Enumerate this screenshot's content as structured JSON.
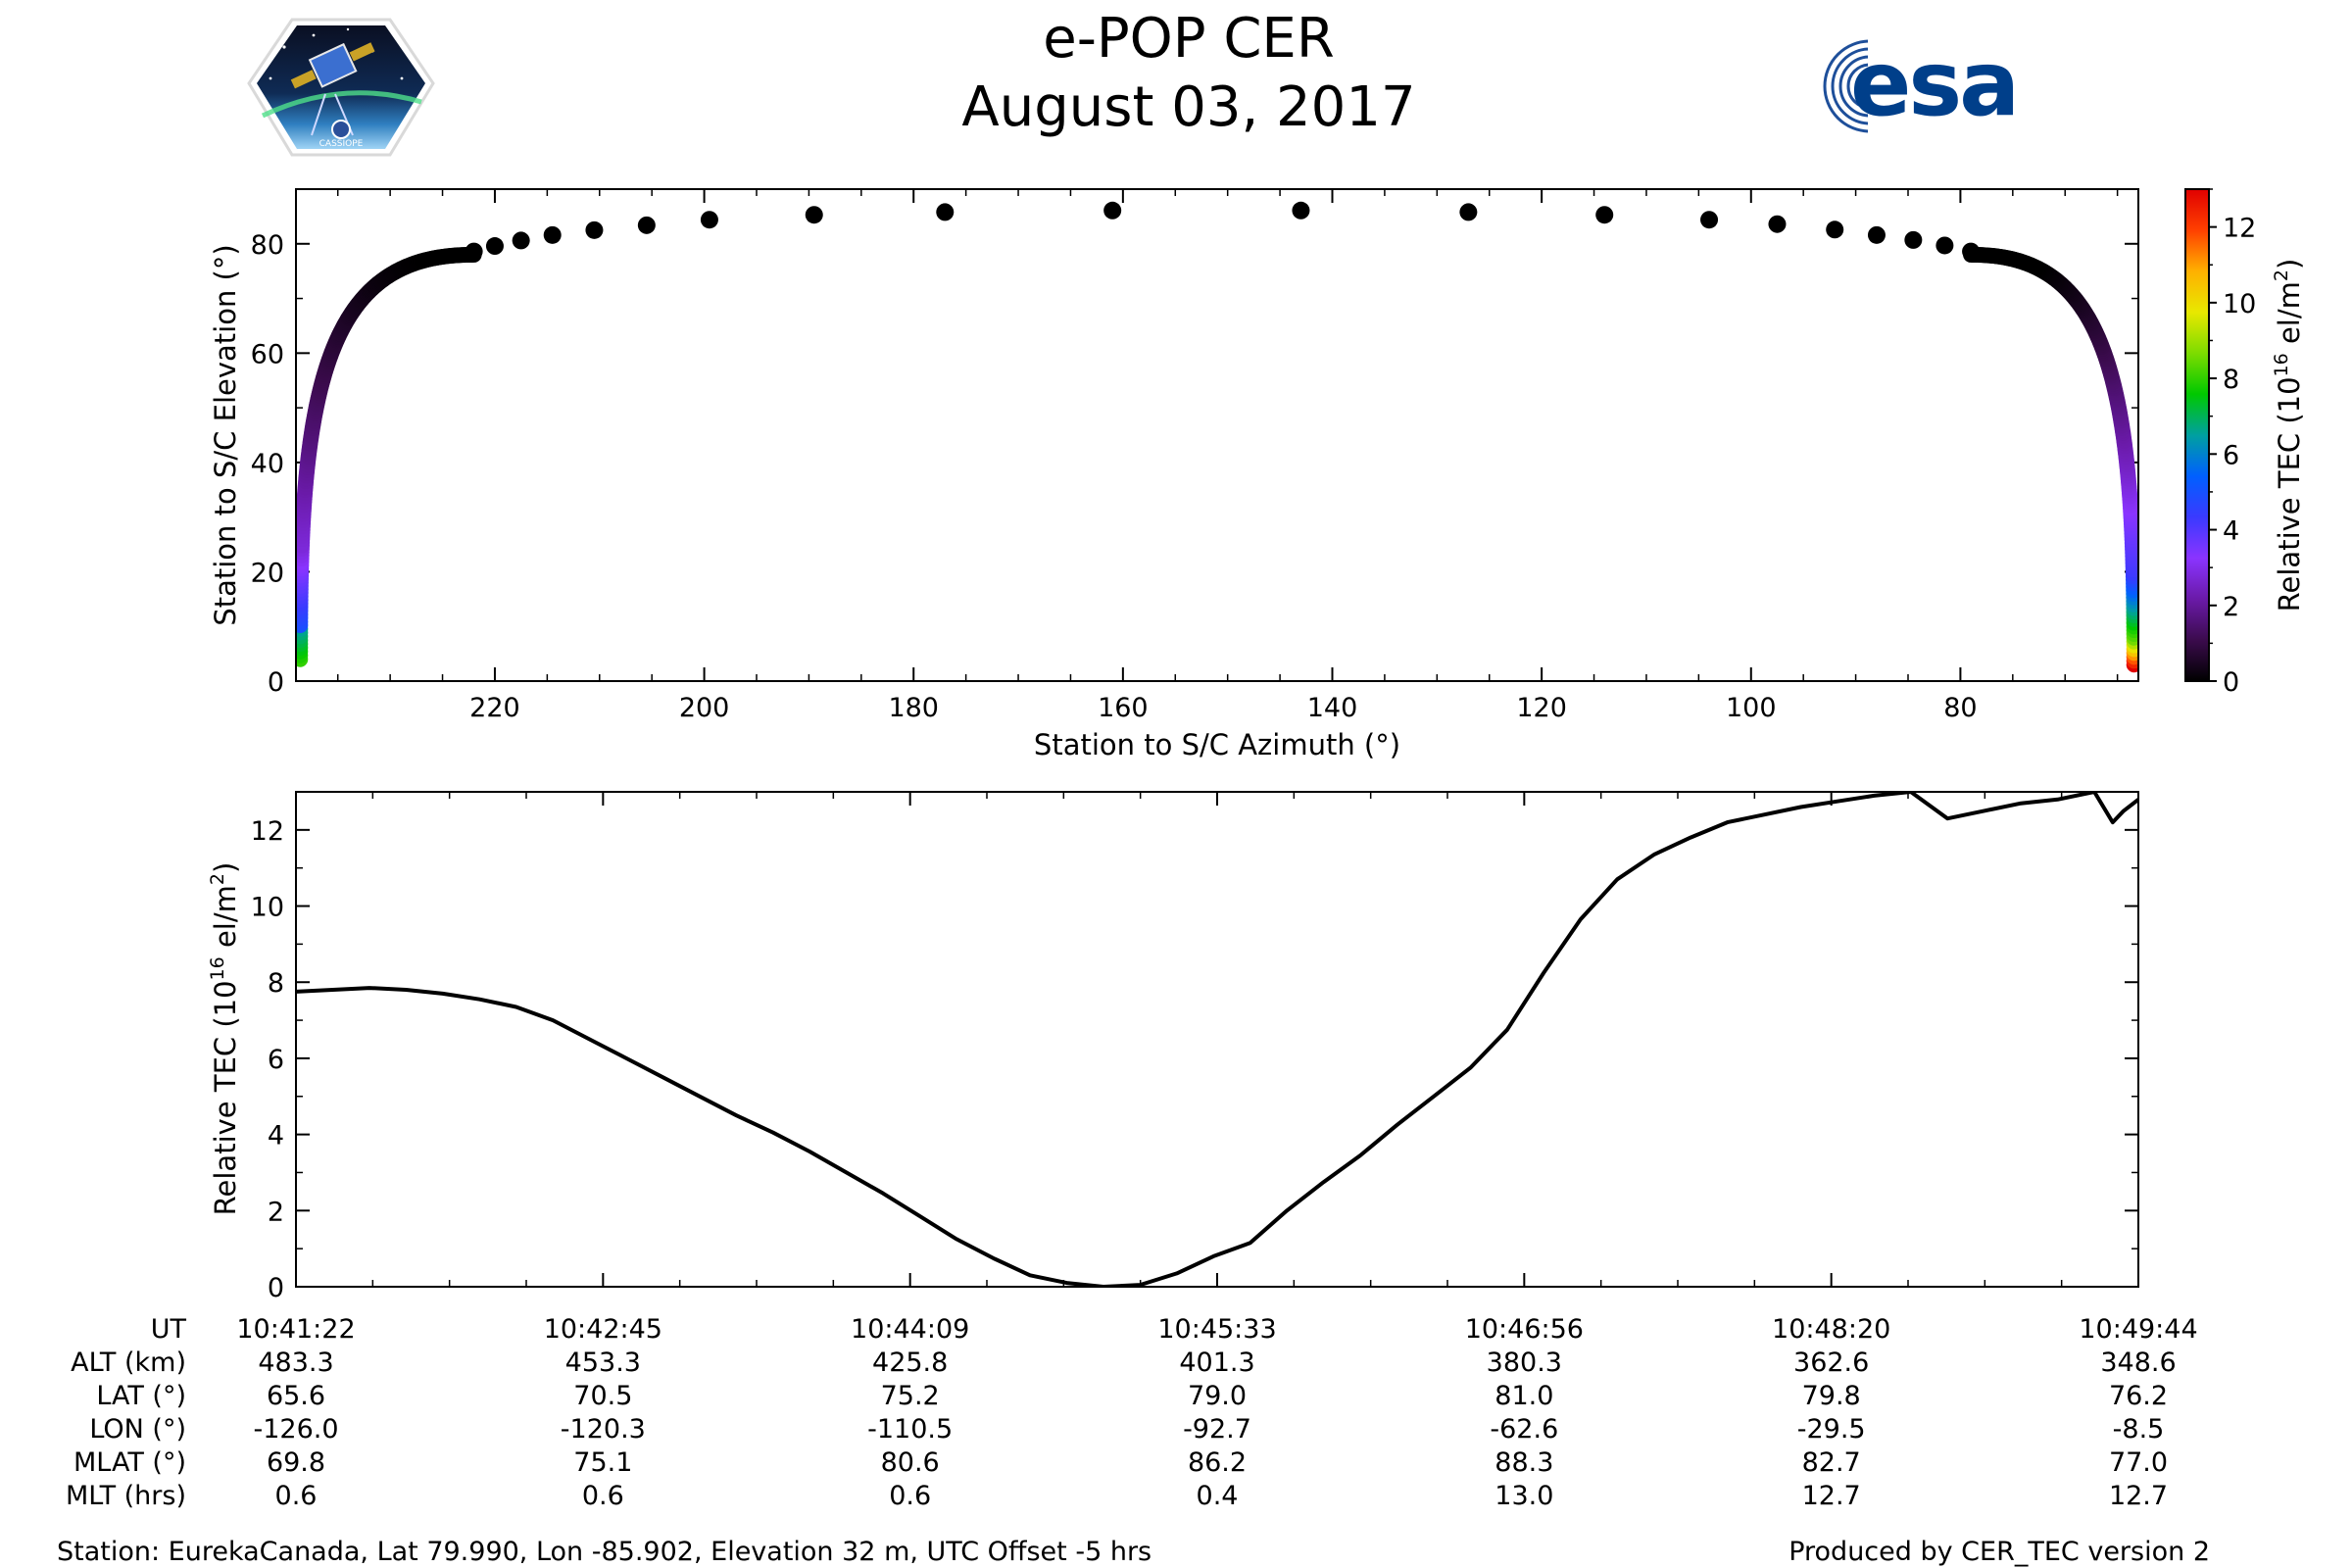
{
  "header": {
    "title": "e-POP CER",
    "date": "August 03, 2017",
    "left_logo_text": "CASSIOPE",
    "right_logo_text": "esa"
  },
  "chart_data": [
    {
      "type": "scatter",
      "name": "sky-track",
      "xlabel": "Station to S/C Azimuth (°)",
      "ylabel": "Station to S/C Elevation (°)",
      "xlim": [
        239,
        63
      ],
      "ylim": [
        0,
        90
      ],
      "xticks": [
        220,
        200,
        180,
        160,
        140,
        120,
        100,
        80
      ],
      "yticks": [
        0,
        20,
        40,
        60,
        80
      ],
      "points": [
        {
          "az": 222,
          "el": 78.6
        },
        {
          "az": 220,
          "el": 79.6
        },
        {
          "az": 217.5,
          "el": 80.6
        },
        {
          "az": 214.5,
          "el": 81.6
        },
        {
          "az": 210.5,
          "el": 82.5
        },
        {
          "az": 205.5,
          "el": 83.4
        },
        {
          "az": 199.5,
          "el": 84.4
        },
        {
          "az": 189.5,
          "el": 85.3
        },
        {
          "az": 177,
          "el": 85.8
        },
        {
          "az": 161,
          "el": 86.1
        },
        {
          "az": 143,
          "el": 86.1
        },
        {
          "az": 127,
          "el": 85.8
        },
        {
          "az": 114,
          "el": 85.3
        },
        {
          "az": 104,
          "el": 84.4
        },
        {
          "az": 97.5,
          "el": 83.6
        },
        {
          "az": 92,
          "el": 82.6
        },
        {
          "az": 88,
          "el": 81.6
        },
        {
          "az": 84.5,
          "el": 80.7
        },
        {
          "az": 81.5,
          "el": 79.7
        },
        {
          "az": 79,
          "el": 78.6
        }
      ],
      "colorbar": {
        "label": "Relative TEC (10",
        "label_sup": "16",
        "label_end": " el/m",
        "label_sup2": "2",
        "label_close": ")",
        "range": [
          0,
          13
        ],
        "ticks": [
          0,
          2,
          4,
          6,
          8,
          10,
          12
        ],
        "colors": [
          "#000000",
          "#3b0b4d",
          "#6a1aa8",
          "#8a34ff",
          "#3a3aff",
          "#0060ff",
          "#00a0a0",
          "#00c800",
          "#7ddc00",
          "#e8e800",
          "#ffb000",
          "#ff4000",
          "#e00000"
        ]
      }
    },
    {
      "type": "line",
      "name": "relative-tec",
      "ylabel": "Relative TEC (10",
      "ylabel_sup": "16",
      "ylabel_end": " el/m",
      "ylabel_sup2": "2",
      "ylabel_close": ")",
      "xlim": [
        0,
        502
      ],
      "ylim": [
        0,
        13
      ],
      "yticks": [
        0,
        2,
        4,
        6,
        8,
        10,
        12
      ],
      "x": [
        0,
        10,
        20,
        30,
        40,
        50,
        60,
        70,
        80,
        90,
        100,
        110,
        120,
        130,
        140,
        150,
        160,
        170,
        180,
        190,
        200,
        210,
        220,
        230,
        240,
        250,
        260,
        270,
        280,
        290,
        300,
        310,
        320,
        330,
        340,
        350,
        360,
        370,
        380,
        390,
        400,
        410,
        420,
        430,
        440,
        450,
        460,
        470,
        480,
        490,
        495,
        498,
        502
      ],
      "values": [
        7.75,
        7.8,
        7.85,
        7.8,
        7.7,
        7.55,
        7.35,
        7.0,
        6.5,
        6.0,
        5.5,
        5.0,
        4.5,
        4.05,
        3.55,
        3.0,
        2.45,
        1.85,
        1.25,
        0.75,
        0.3,
        0.1,
        0.0,
        0.05,
        0.35,
        0.8,
        1.15,
        2.0,
        2.75,
        3.45,
        4.25,
        5.0,
        5.75,
        6.75,
        8.25,
        9.65,
        10.7,
        11.35,
        11.8,
        12.2,
        12.4,
        12.6,
        12.75,
        12.9,
        13.0,
        12.3,
        12.5,
        12.7,
        12.8,
        13.0,
        12.2,
        12.5,
        12.8
      ]
    }
  ],
  "time_table": {
    "rows": [
      {
        "label": "UT",
        "values": [
          "10:41:22",
          "10:42:45",
          "10:44:09",
          "10:45:33",
          "10:46:56",
          "10:48:20",
          "10:49:44"
        ]
      },
      {
        "label": "ALT (km)",
        "values": [
          "483.3",
          "453.3",
          "425.8",
          "401.3",
          "380.3",
          "362.6",
          "348.6"
        ]
      },
      {
        "label": "LAT (°)",
        "values": [
          "65.6",
          "70.5",
          "75.2",
          "79.0",
          "81.0",
          "79.8",
          "76.2"
        ]
      },
      {
        "label": "LON (°)",
        "values": [
          "-126.0",
          "-120.3",
          "-110.5",
          "-92.7",
          "-62.6",
          "-29.5",
          "-8.5"
        ]
      },
      {
        "label": "MLAT (°)",
        "values": [
          "69.8",
          "75.1",
          "80.6",
          "86.2",
          "88.3",
          "82.7",
          "77.0"
        ]
      },
      {
        "label": "MLT (hrs)",
        "values": [
          "0.6",
          "0.6",
          "0.6",
          "0.4",
          "13.0",
          "12.7",
          "12.7"
        ]
      }
    ]
  },
  "footer": {
    "station": "Station: EurekaCanada, Lat 79.990, Lon -85.902, Elevation 32 m, UTC Offset -5 hrs",
    "produced": "Produced by CER_TEC version 2"
  }
}
